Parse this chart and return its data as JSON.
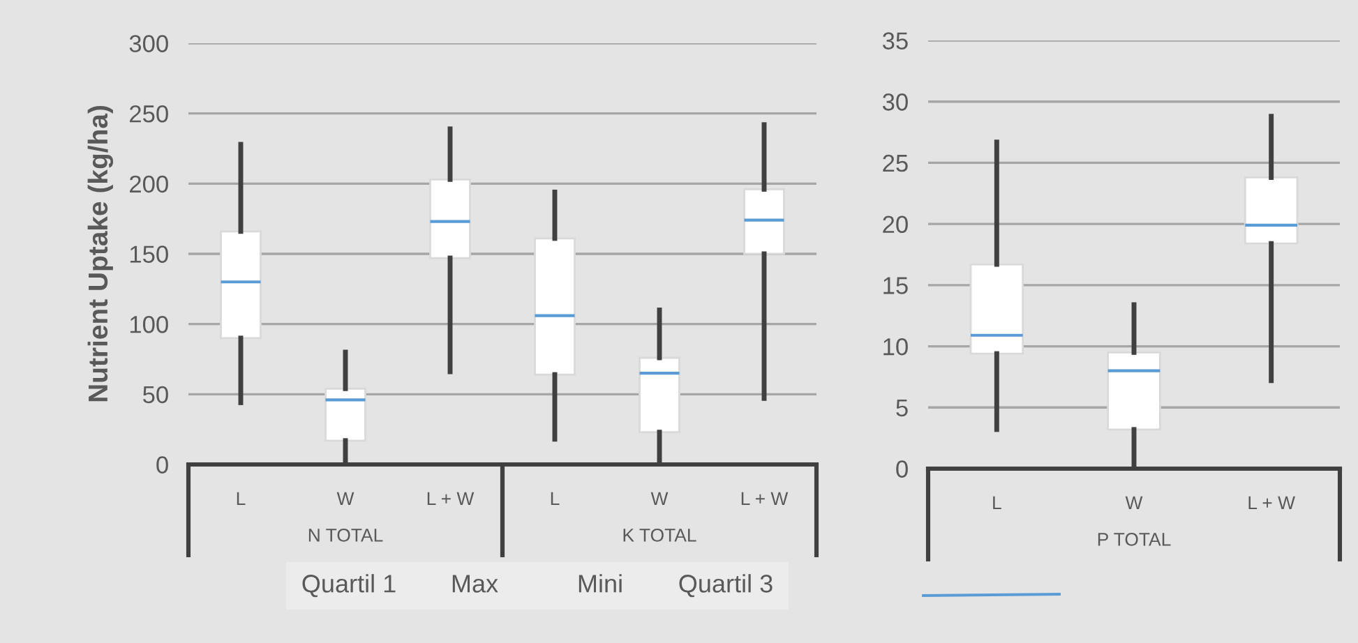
{
  "chart_data": [
    {
      "type": "box",
      "xlabel": "N TOTAL",
      "ylabel": "Nutrient Uptake (kg/ha)",
      "categories": [
        "L",
        "W",
        "L + W"
      ],
      "ylim": [
        0,
        300
      ],
      "yticks": [
        0,
        50,
        100,
        150,
        200,
        250,
        300
      ],
      "grid": "y",
      "series": [
        {
          "color": "#ffffff",
          "boxes": [
            {
              "low": 44,
              "q1": 90,
              "median": 130,
              "q3": 166,
              "high": 228
            },
            {
              "low": 0,
              "q1": 17,
              "median": 46,
              "q3": 54,
              "high": 80
            },
            {
              "low": 66,
              "q1": 147,
              "median": 173,
              "q3": 203,
              "high": 239
            }
          ]
        }
      ],
      "annotations": [
        "Quartil 1",
        "Max",
        "Mini",
        "Quartil 3"
      ]
    },
    {
      "type": "box",
      "xlabel": "K TOTAL",
      "categories": [
        "L",
        "W",
        "L + W"
      ],
      "ylim": [
        0,
        300
      ],
      "yticks": [
        0,
        50,
        100,
        150,
        200,
        250,
        300
      ],
      "grid": "y",
      "tick_labels": "x",
      "series": [
        {
          "color": "#ffffff",
          "boxes": [
            {
              "low": 18,
              "q1": 64,
              "median": 106,
              "q3": 161,
              "high": 194
            },
            {
              "low": 0,
              "q1": 23,
              "median": 65,
              "q3": 76,
              "high": 110
            },
            {
              "low": 47,
              "q1": 150,
              "median": 174,
              "q3": 196,
              "high": 242
            }
          ]
        }
      ]
    },
    {
      "type": "box",
      "xlabel": "P TOTAL",
      "categories": [
        "L",
        "W",
        "L + W"
      ],
      "ylim": [
        0,
        35
      ],
      "yticks": [
        0,
        5,
        10,
        15,
        20,
        25,
        30,
        35
      ],
      "grid": "y",
      "series": [
        {
          "color": "#ffffff",
          "boxes": [
            {
              "low": 3.2,
              "q1": 9.4,
              "median": 10.9,
              "q3": 16.7,
              "high": 26.7
            },
            {
              "low": 0,
              "q1": 3.2,
              "median": 8.0,
              "q3": 9.5,
              "high": 13.4
            },
            {
              "low": 7.2,
              "q1": 18.4,
              "median": 19.9,
              "q3": 23.8,
              "high": 28.8
            }
          ]
        }
      ]
    }
  ]
}
